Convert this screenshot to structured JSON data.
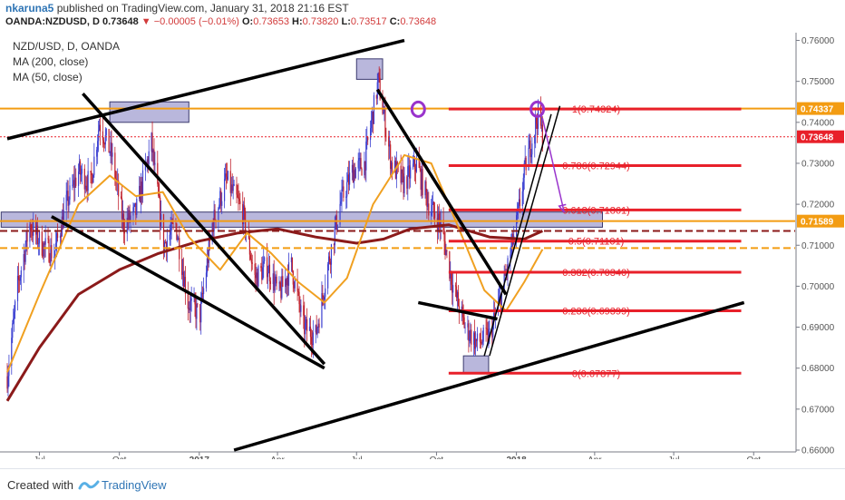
{
  "header": {
    "user": "nkaruna5",
    "published": " published on TradingView.com, January 31, 2018 21:16 EST",
    "symbol": "OANDA:NZDUSD, D",
    "last": "0.73648",
    "change": "−0.00005 (−0.01%)",
    "o_label": "O:",
    "o": "0.73653",
    "h_label": "H:",
    "h": "0.73820",
    "l_label": "L:",
    "l": "0.73517",
    "c_label": "C:",
    "c": "0.73648"
  },
  "legend": {
    "title": "NZD/USD, D, OANDA",
    "ma200": "MA (200, close)",
    "ma50": "MA (50, close)"
  },
  "footer": {
    "created_with": "Created with",
    "brand": "TradingView"
  },
  "colors": {
    "up": "#3a3fd1",
    "down": "#c0202c",
    "ma200": "#8b1a1a",
    "ma50": "#f0a020",
    "orange": "#f39c12",
    "fib_red": "#e8202a",
    "trend": "#000000",
    "zone": "#7f7cbf",
    "arrow": "#9933cc",
    "axis_text": "#555555"
  },
  "chart_data": {
    "type": "candlestick",
    "instrument": "NZD/USD",
    "timeframe": "D",
    "ylim": [
      0.66,
      0.761
    ],
    "y_ticks": [
      "0.76000",
      "0.75000",
      "0.74000",
      "0.73000",
      "0.72000",
      "0.71000",
      "0.70000",
      "0.69000",
      "0.68000",
      "0.67000",
      "0.66000"
    ],
    "x_ticks": [
      "Jul",
      "Oct",
      "2017",
      "Apr",
      "Jul",
      "Oct",
      "2018",
      "Apr",
      "Jul",
      "Oct"
    ],
    "price_labels": [
      {
        "text": "0.74337",
        "value": 0.74337,
        "color": "#f39c12"
      },
      {
        "text": "0.73648",
        "value": 0.73648,
        "color": "#e8202a"
      },
      {
        "text": "0.71589",
        "value": 0.71589,
        "color": "#f39c12"
      }
    ],
    "fib_levels": [
      {
        "label": "1(0.74324)",
        "value": 0.74324
      },
      {
        "label": "0.786(0.72944)",
        "value": 0.72944
      },
      {
        "label": "0.618(0.71861)",
        "value": 0.71861
      },
      {
        "label": "0.5(0.71101)",
        "value": 0.71101
      },
      {
        "label": "0.382(0.70340)",
        "value": 0.7034
      },
      {
        "label": "0.236(0.69399)",
        "value": 0.69399
      },
      {
        "label": "0(0.67877)",
        "value": 0.67877
      }
    ],
    "horizontal_lines": [
      {
        "value": 0.74337,
        "style": "solid",
        "color": "#f39c12"
      },
      {
        "value": 0.73648,
        "style": "dotted",
        "color": "#e8202a"
      },
      {
        "value": 0.71589,
        "style": "solid",
        "color": "#f39c12"
      },
      {
        "value": 0.7135,
        "style": "dashed",
        "color": "#8b1a1a"
      },
      {
        "value": 0.7093,
        "style": "dashed",
        "color": "#f39c12"
      }
    ],
    "close_path": [
      [
        "2016-05-25",
        0.678
      ],
      [
        "2016-06-06",
        0.7
      ],
      [
        "2016-06-20",
        0.715
      ],
      [
        "2016-07-04",
        0.71
      ],
      [
        "2016-07-18",
        0.708
      ],
      [
        "2016-08-01",
        0.72
      ],
      [
        "2016-08-15",
        0.728
      ],
      [
        "2016-08-29",
        0.725
      ],
      [
        "2016-09-08",
        0.74
      ],
      [
        "2016-09-22",
        0.732
      ],
      [
        "2016-10-06",
        0.715
      ],
      [
        "2016-10-20",
        0.718
      ],
      [
        "2016-11-07",
        0.735
      ],
      [
        "2016-11-21",
        0.71
      ],
      [
        "2016-12-05",
        0.715
      ],
      [
        "2016-12-19",
        0.696
      ],
      [
        "2017-01-02",
        0.693
      ],
      [
        "2017-01-16",
        0.715
      ],
      [
        "2017-02-01",
        0.726
      ],
      [
        "2017-02-20",
        0.718
      ],
      [
        "2017-03-06",
        0.702
      ],
      [
        "2017-03-20",
        0.705
      ],
      [
        "2017-04-03",
        0.698
      ],
      [
        "2017-04-17",
        0.705
      ],
      [
        "2017-05-01",
        0.69
      ],
      [
        "2017-05-15",
        0.688
      ],
      [
        "2017-05-29",
        0.705
      ],
      [
        "2017-06-12",
        0.72
      ],
      [
        "2017-06-26",
        0.728
      ],
      [
        "2017-07-10",
        0.73
      ],
      [
        "2017-07-26",
        0.75
      ],
      [
        "2017-08-10",
        0.73
      ],
      [
        "2017-08-24",
        0.725
      ],
      [
        "2017-09-08",
        0.73
      ],
      [
        "2017-09-22",
        0.72
      ],
      [
        "2017-10-06",
        0.715
      ],
      [
        "2017-10-20",
        0.7
      ],
      [
        "2017-11-03",
        0.69
      ],
      [
        "2017-11-17",
        0.686
      ],
      [
        "2017-12-01",
        0.688
      ],
      [
        "2017-12-15",
        0.698
      ],
      [
        "2018-01-01",
        0.715
      ],
      [
        "2018-01-12",
        0.73
      ],
      [
        "2018-01-26",
        0.742
      ],
      [
        "2018-01-31",
        0.7365
      ]
    ],
    "ma200": [
      [
        "2016-05-25",
        0.672
      ],
      [
        "2016-07-01",
        0.685
      ],
      [
        "2016-08-15",
        0.698
      ],
      [
        "2016-10-01",
        0.704
      ],
      [
        "2016-11-15",
        0.708
      ],
      [
        "2017-01-01",
        0.711
      ],
      [
        "2017-02-15",
        0.713
      ],
      [
        "2017-04-01",
        0.714
      ],
      [
        "2017-05-15",
        0.712
      ],
      [
        "2017-07-01",
        0.7105
      ],
      [
        "2017-08-01",
        0.7115
      ],
      [
        "2017-09-01",
        0.714
      ],
      [
        "2017-10-15",
        0.715
      ],
      [
        "2017-12-01",
        0.712
      ],
      [
        "2018-01-10",
        0.7115
      ],
      [
        "2018-01-31",
        0.7135
      ]
    ],
    "ma50": [
      [
        "2016-05-25",
        0.679
      ],
      [
        "2016-07-01",
        0.698
      ],
      [
        "2016-08-15",
        0.72
      ],
      [
        "2016-09-20",
        0.727
      ],
      [
        "2016-10-20",
        0.722
      ],
      [
        "2016-11-20",
        0.723
      ],
      [
        "2016-12-20",
        0.712
      ],
      [
        "2017-01-25",
        0.704
      ],
      [
        "2017-02-25",
        0.713
      ],
      [
        "2017-03-25",
        0.708
      ],
      [
        "2017-04-25",
        0.701
      ],
      [
        "2017-05-25",
        0.696
      ],
      [
        "2017-06-20",
        0.702
      ],
      [
        "2017-07-20",
        0.72
      ],
      [
        "2017-08-25",
        0.732
      ],
      [
        "2017-09-25",
        0.73
      ],
      [
        "2017-10-25",
        0.715
      ],
      [
        "2017-11-25",
        0.699
      ],
      [
        "2017-12-20",
        0.694
      ],
      [
        "2018-01-10",
        0.701
      ],
      [
        "2018-01-31",
        0.709
      ]
    ],
    "trendlines": [
      {
        "from": [
          "2016-05-25",
          0.736
        ],
        "to": [
          "2017-08-25",
          0.76
        ]
      },
      {
        "from": [
          "2016-08-20",
          0.747
        ],
        "to": [
          "2017-05-25",
          0.681
        ]
      },
      {
        "from": [
          "2016-07-15",
          0.717
        ],
        "to": [
          "2017-05-25",
          0.68
        ]
      },
      {
        "from": [
          "2017-07-25",
          0.748
        ],
        "to": [
          "2017-12-20",
          0.698
        ]
      },
      {
        "from": [
          "2017-09-10",
          0.696
        ],
        "to": [
          "2017-12-10",
          0.692
        ]
      },
      {
        "from": [
          "2017-02-10",
          0.66
        ],
        "to": [
          "2018-09-20",
          0.696
        ]
      },
      {
        "from": [
          "2017-12-01",
          0.683
        ],
        "to": [
          "2018-02-20",
          0.744
        ]
      },
      {
        "from": [
          "2017-11-25",
          0.683
        ],
        "to": [
          "2018-02-10",
          0.742
        ]
      }
    ],
    "zones": [
      {
        "from": "2016-09-20",
        "to": "2016-12-20",
        "low": 0.74,
        "high": 0.745
      },
      {
        "from": "2017-07-01",
        "to": "2017-07-31",
        "low": 0.7505,
        "high": 0.7555
      },
      {
        "from": "2016-05-18",
        "to": "2018-04-10",
        "low": 0.7144,
        "high": 0.7181
      },
      {
        "from": "2017-11-01",
        "to": "2017-11-30",
        "low": 0.6788,
        "high": 0.683
      }
    ],
    "fib_span": {
      "from": "2017-10-15",
      "to": "2018-02-20"
    },
    "circles": [
      {
        "date": "2017-09-10",
        "value": 0.7432
      },
      {
        "date": "2018-01-25",
        "value": 0.7432
      }
    ],
    "arrow": {
      "from": [
        "2018-01-31",
        0.741
      ],
      "to": [
        "2018-02-25",
        0.718
      ]
    }
  }
}
